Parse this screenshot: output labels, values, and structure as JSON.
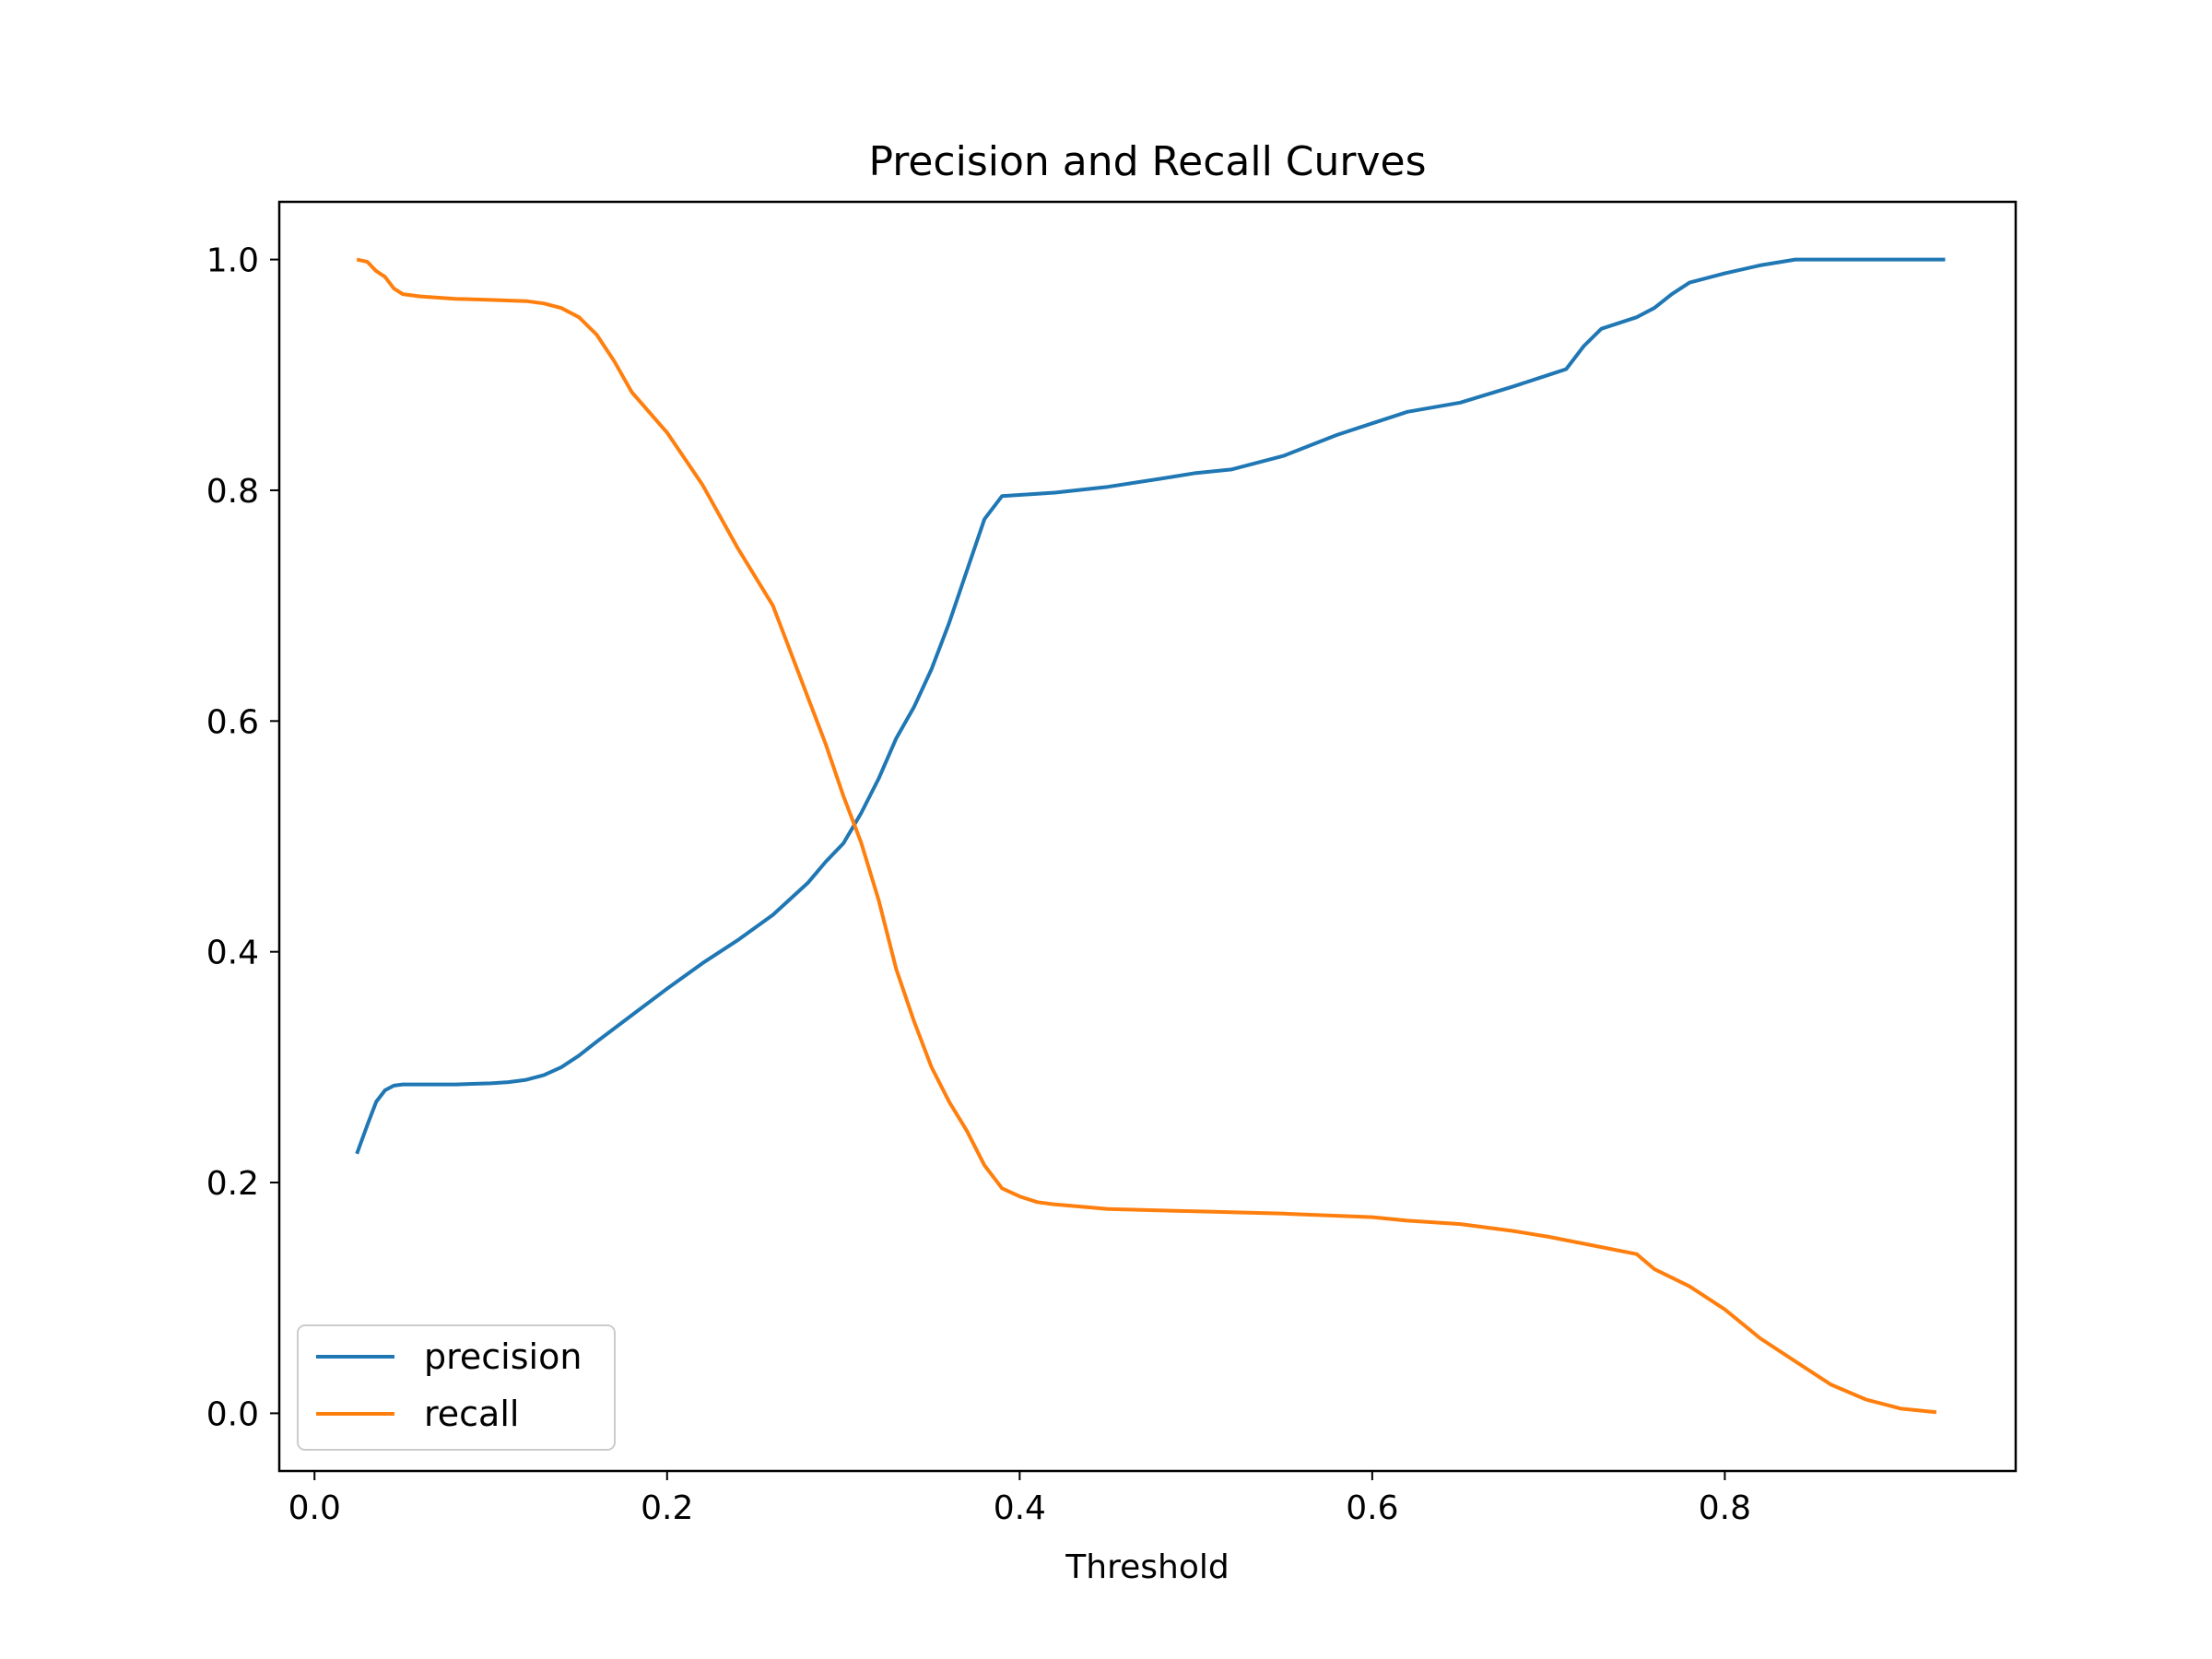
{
  "chart_data": {
    "type": "line",
    "title": "Precision and Recall Curves",
    "xlabel": "Threshold",
    "ylabel": "",
    "xlim": [
      -0.02,
      0.965
    ],
    "ylim": [
      -0.05,
      1.05
    ],
    "xticks": [
      0.0,
      0.2,
      0.4,
      0.6,
      0.8
    ],
    "xtick_labels": [
      "0.0",
      "0.2",
      "0.4",
      "0.6",
      "0.8"
    ],
    "yticks": [
      0.0,
      0.2,
      0.4,
      0.6,
      0.8,
      1.0
    ],
    "ytick_labels": [
      "0.0",
      "0.2",
      "0.4",
      "0.6",
      "0.8",
      "1.0"
    ],
    "grid": false,
    "legend": "lower-left",
    "series": [
      {
        "name": "precision",
        "color": "#1f77b4",
        "x": [
          0.024,
          0.03,
          0.035,
          0.04,
          0.045,
          0.05,
          0.06,
          0.08,
          0.1,
          0.11,
          0.12,
          0.13,
          0.14,
          0.15,
          0.16,
          0.18,
          0.2,
          0.22,
          0.24,
          0.26,
          0.28,
          0.29,
          0.3,
          0.31,
          0.32,
          0.33,
          0.34,
          0.35,
          0.36,
          0.37,
          0.38,
          0.39,
          0.4,
          0.41,
          0.42,
          0.45,
          0.48,
          0.5,
          0.52,
          0.55,
          0.58,
          0.6,
          0.62,
          0.65,
          0.68,
          0.7,
          0.71,
          0.72,
          0.73,
          0.75,
          0.76,
          0.77,
          0.78,
          0.8,
          0.82,
          0.84,
          0.86,
          0.9,
          0.925
        ],
        "y": [
          0.225,
          0.25,
          0.27,
          0.28,
          0.284,
          0.285,
          0.285,
          0.285,
          0.286,
          0.287,
          0.289,
          0.293,
          0.3,
          0.31,
          0.322,
          0.345,
          0.368,
          0.39,
          0.41,
          0.432,
          0.46,
          0.478,
          0.494,
          0.52,
          0.55,
          0.585,
          0.612,
          0.645,
          0.685,
          0.73,
          0.775,
          0.795,
          0.796,
          0.797,
          0.798,
          0.803,
          0.81,
          0.815,
          0.818,
          0.83,
          0.848,
          0.858,
          0.868,
          0.876,
          0.89,
          0.9,
          0.905,
          0.925,
          0.94,
          0.95,
          0.958,
          0.97,
          0.98,
          0.988,
          0.995,
          1.0,
          1.0,
          1.0,
          1.0
        ]
      },
      {
        "name": "recall",
        "color": "#ff7f0e",
        "x": [
          0.024,
          0.03,
          0.035,
          0.04,
          0.045,
          0.05,
          0.06,
          0.08,
          0.1,
          0.12,
          0.13,
          0.14,
          0.15,
          0.16,
          0.17,
          0.18,
          0.2,
          0.22,
          0.24,
          0.26,
          0.28,
          0.29,
          0.3,
          0.31,
          0.32,
          0.33,
          0.34,
          0.35,
          0.36,
          0.37,
          0.38,
          0.39,
          0.4,
          0.41,
          0.42,
          0.45,
          0.5,
          0.55,
          0.6,
          0.62,
          0.65,
          0.68,
          0.7,
          0.72,
          0.75,
          0.76,
          0.78,
          0.8,
          0.82,
          0.84,
          0.86,
          0.88,
          0.9,
          0.92
        ],
        "y": [
          1.0,
          0.998,
          0.99,
          0.985,
          0.975,
          0.97,
          0.968,
          0.966,
          0.965,
          0.964,
          0.962,
          0.958,
          0.95,
          0.935,
          0.912,
          0.885,
          0.85,
          0.805,
          0.75,
          0.7,
          0.62,
          0.58,
          0.535,
          0.495,
          0.445,
          0.385,
          0.34,
          0.3,
          0.27,
          0.245,
          0.215,
          0.195,
          0.188,
          0.183,
          0.181,
          0.177,
          0.175,
          0.173,
          0.17,
          0.167,
          0.164,
          0.158,
          0.153,
          0.147,
          0.138,
          0.125,
          0.11,
          0.09,
          0.065,
          0.045,
          0.025,
          0.012,
          0.004,
          0.001
        ]
      }
    ]
  }
}
